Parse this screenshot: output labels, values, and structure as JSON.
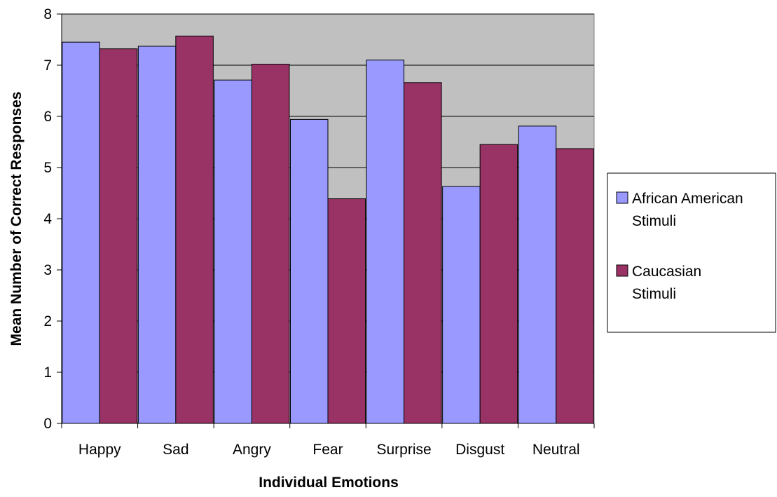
{
  "chart_data": {
    "type": "bar",
    "title": "",
    "xlabel": "Individual Emotions",
    "ylabel": "Mean Number of Correct Responses",
    "categories": [
      "Happy",
      "Sad",
      "Angry",
      "Fear",
      "Surprise",
      "Disgust",
      "Neutral"
    ],
    "series": [
      {
        "name_lines": [
          "African American",
          "Stimuli"
        ],
        "color": "#9999ff",
        "values": [
          7.45,
          7.37,
          6.71,
          5.94,
          7.1,
          4.63,
          5.81
        ]
      },
      {
        "name_lines": [
          "Caucasian",
          "Stimuli"
        ],
        "color": "#993366",
        "values": [
          7.32,
          7.57,
          7.02,
          4.39,
          6.66,
          5.45,
          5.37
        ]
      }
    ],
    "ylim": [
      0,
      8
    ],
    "yticks": [
      "0",
      "1",
      "2",
      "3",
      "4",
      "5",
      "6",
      "7",
      "8"
    ],
    "grid": true,
    "plot_background": "#c0c0c0",
    "legend_position": "right"
  }
}
